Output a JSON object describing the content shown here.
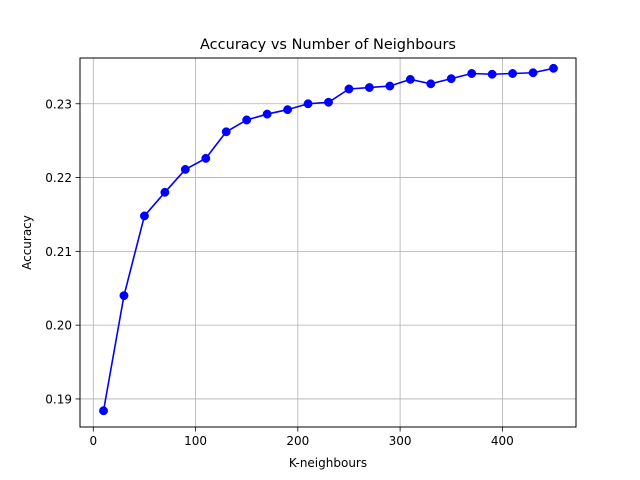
{
  "chart_data": {
    "type": "line",
    "title": "Accuracy vs Number of Neighbours",
    "xlabel": "K-neighbours",
    "ylabel": "Accuracy",
    "xlim": [
      -13,
      472
    ],
    "ylim": [
      0.1862,
      0.2362
    ],
    "xticks": [
      0,
      100,
      200,
      300,
      400
    ],
    "xtick_labels": [
      "0",
      "100",
      "200",
      "300",
      "400"
    ],
    "yticks": [
      0.19,
      0.2,
      0.21,
      0.22,
      0.23
    ],
    "ytick_labels": [
      "0.19",
      "0.20",
      "0.21",
      "0.22",
      "0.23"
    ],
    "grid": true,
    "legend": false,
    "series": [
      {
        "color": "#0000ff",
        "marker": "circle",
        "x": [
          10,
          30,
          50,
          70,
          90,
          110,
          130,
          150,
          170,
          190,
          210,
          230,
          250,
          270,
          290,
          310,
          330,
          350,
          370,
          390,
          410,
          430,
          450
        ],
        "y": [
          0.1884,
          0.204,
          0.2148,
          0.218,
          0.2211,
          0.2226,
          0.2262,
          0.2278,
          0.2286,
          0.2292,
          0.23,
          0.2302,
          0.232,
          0.2322,
          0.2324,
          0.2333,
          0.2327,
          0.2334,
          0.2341,
          0.234,
          0.2341,
          0.2342,
          0.2348
        ]
      }
    ]
  }
}
